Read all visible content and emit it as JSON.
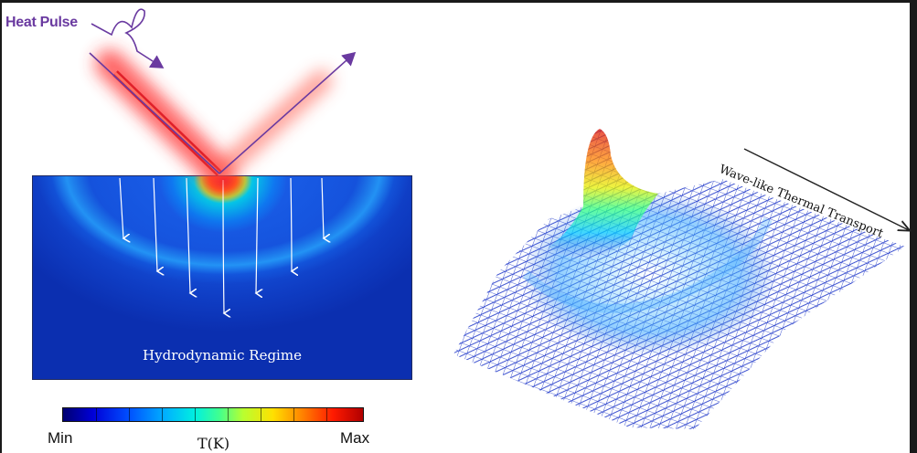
{
  "labels": {
    "heat_pulse": "Heat Pulse",
    "regime": "Hydrodynamic Regime",
    "colorbar_min": "Min",
    "colorbar_max": "Max",
    "colorbar_title": "T(K)",
    "wave": "Wave-like Thermal Transport"
  },
  "colors": {
    "accent_purple": "#6a3aa0",
    "beam_red": "#e0202a",
    "mesh_blue": "#1a33c8",
    "background": "#ffffff"
  }
}
